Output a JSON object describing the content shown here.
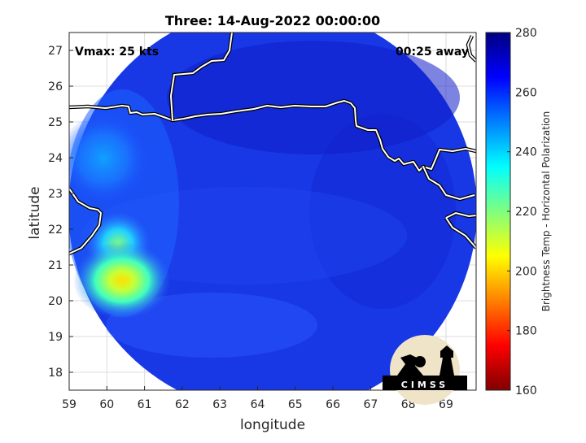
{
  "figure": {
    "title": "Three: 14-Aug-2022 00:00:00",
    "annotation_left": "Vmax: 25 kts",
    "annotation_right": "00:25 away",
    "logo_text": "CIMSS"
  },
  "chart_data": {
    "type": "heatmap",
    "title": "Three: 14-Aug-2022 00:00:00",
    "xlabel": "longitude",
    "ylabel": "latitude",
    "xlim": [
      59,
      69.8
    ],
    "ylim": [
      17.5,
      27.5
    ],
    "xticks": [
      59,
      60,
      61,
      62,
      63,
      64,
      65,
      66,
      67,
      68,
      69
    ],
    "yticks": [
      18,
      19,
      20,
      21,
      22,
      23,
      24,
      25,
      26,
      27
    ],
    "grid": true,
    "colorbar": {
      "label": "Brightness Temp - Horizontal Polarization",
      "range": [
        160,
        280
      ],
      "ticks": [
        160,
        180,
        200,
        220,
        240,
        260,
        280
      ],
      "colormap": "jet"
    },
    "background_value": 265,
    "swath": {
      "center": [
        64.4,
        22.6
      ],
      "radius_deg": 5.3
    },
    "features": [
      {
        "type": "cold_region",
        "center": [
          60.5,
          21.0
        ],
        "radius": 1.0,
        "min_value": 205
      },
      {
        "type": "cold_region",
        "center": [
          60.2,
          22.0
        ],
        "radius": 0.6,
        "min_value": 225
      },
      {
        "type": "cold_region",
        "center": [
          60.0,
          24.0
        ],
        "radius": 1.0,
        "min_value": 245
      }
    ]
  }
}
